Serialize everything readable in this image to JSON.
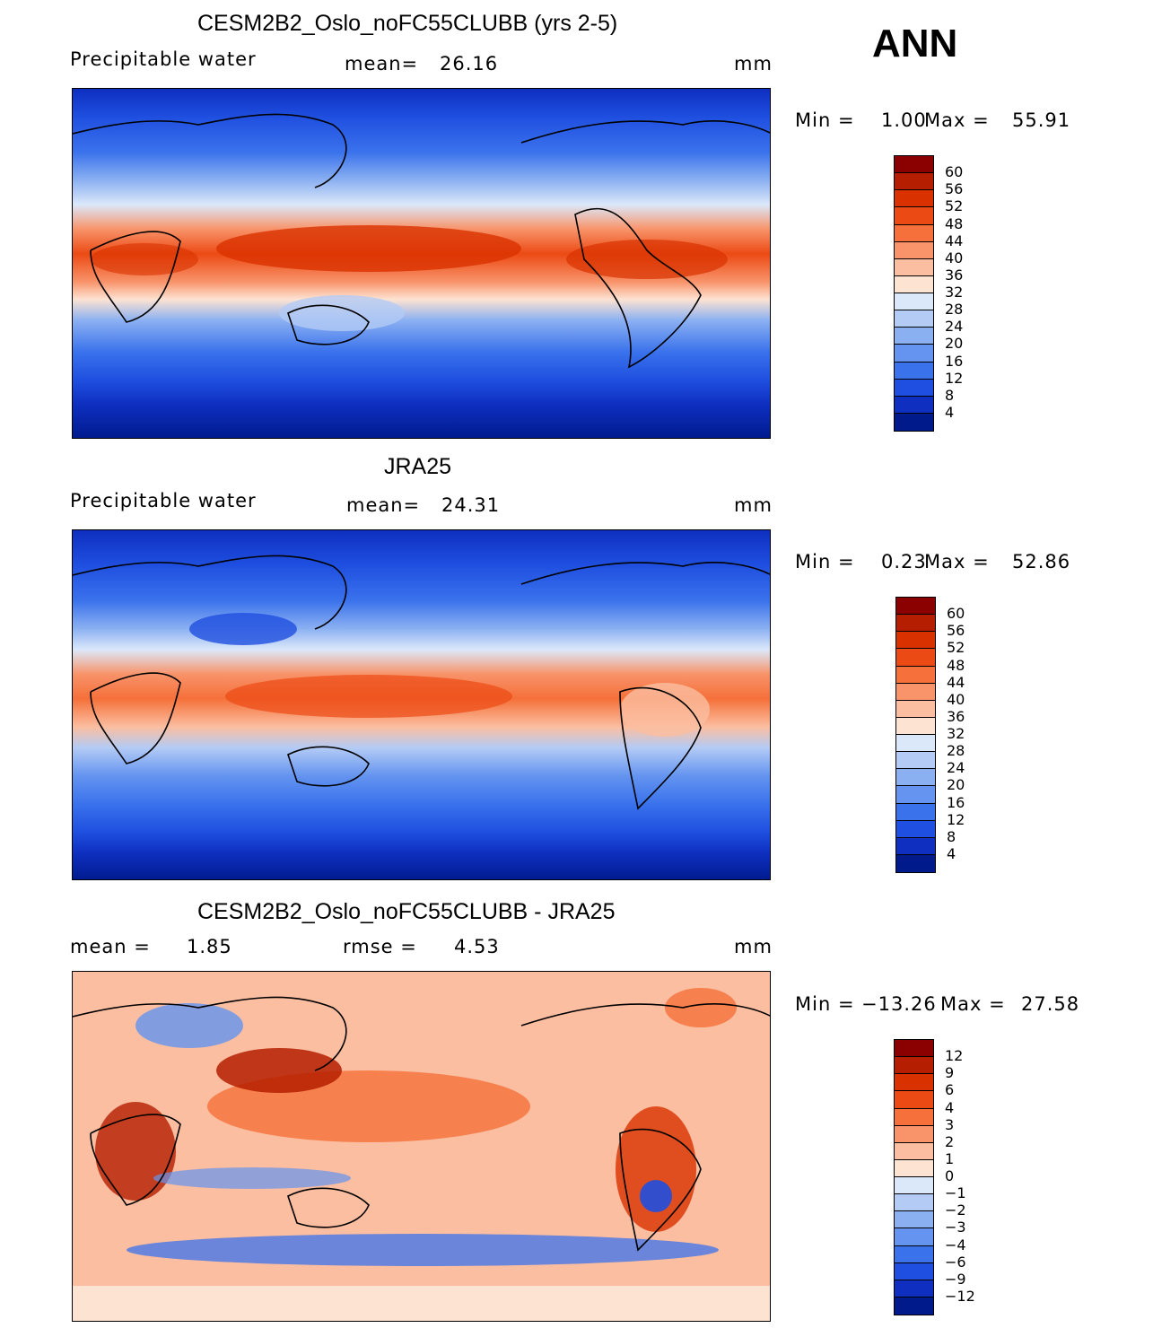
{
  "season": "ANN",
  "panels": [
    {
      "title": "CESM2B2_Oslo_noFC55CLUBB (yrs 2-5)",
      "left_label": "Precipitable water",
      "mean_label": "mean=",
      "mean_value": "26.16",
      "units": "mm",
      "minmax": {
        "min_label": "Min =",
        "min_value": "1.00",
        "max_label": "Max =",
        "max_value": "55.91"
      }
    },
    {
      "title": "JRA25",
      "left_label": "Precipitable water",
      "mean_label": "mean=",
      "mean_value": "24.31",
      "units": "mm",
      "minmax": {
        "min_label": "Min =",
        "min_value": "0.23",
        "max_label": "Max =",
        "max_value": "52.86"
      }
    },
    {
      "title": "CESM2B2_Oslo_noFC55CLUBB - JRA25",
      "left_label": "mean =",
      "left_value": "1.85",
      "mean_label": "rmse =",
      "mean_value": "4.53",
      "units": "mm",
      "minmax": {
        "min_label": "Min =",
        "min_value": "−13.26",
        "max_label": "Max =",
        "max_value": "27.58"
      }
    }
  ],
  "colorbars": [
    {
      "labels": [
        "60",
        "56",
        "52",
        "48",
        "44",
        "40",
        "36",
        "32",
        "28",
        "24",
        "20",
        "16",
        "12",
        "8",
        "4"
      ],
      "colors": [
        "#8b0000",
        "#b51e00",
        "#d93200",
        "#ec4a14",
        "#f5703a",
        "#f8936a",
        "#fbbea0",
        "#fde3d2",
        "#dbe8fa",
        "#b3cbf5",
        "#8bb0f2",
        "#6494f0",
        "#3a72ec",
        "#1f4fe0",
        "#0e2fc0",
        "#001a8c"
      ]
    },
    {
      "labels": [
        "60",
        "56",
        "52",
        "48",
        "44",
        "40",
        "36",
        "32",
        "28",
        "24",
        "20",
        "16",
        "12",
        "8",
        "4"
      ],
      "colors": [
        "#8b0000",
        "#b51e00",
        "#d93200",
        "#ec4a14",
        "#f5703a",
        "#f8936a",
        "#fbbea0",
        "#fde3d2",
        "#dbe8fa",
        "#b3cbf5",
        "#8bb0f2",
        "#6494f0",
        "#3a72ec",
        "#1f4fe0",
        "#0e2fc0",
        "#001a8c"
      ]
    },
    {
      "labels": [
        "12",
        "9",
        "6",
        "4",
        "3",
        "2",
        "1",
        "0",
        "−1",
        "−2",
        "−3",
        "−4",
        "−6",
        "−9",
        "−12"
      ],
      "colors": [
        "#8b0000",
        "#b51e00",
        "#d93200",
        "#ec4a14",
        "#f5703a",
        "#f8936a",
        "#fbbea0",
        "#fde3d2",
        "#dbe8fa",
        "#b3cbf5",
        "#8bb0f2",
        "#6494f0",
        "#3a72ec",
        "#1f4fe0",
        "#0e2fc0",
        "#001a8c"
      ]
    }
  ]
}
